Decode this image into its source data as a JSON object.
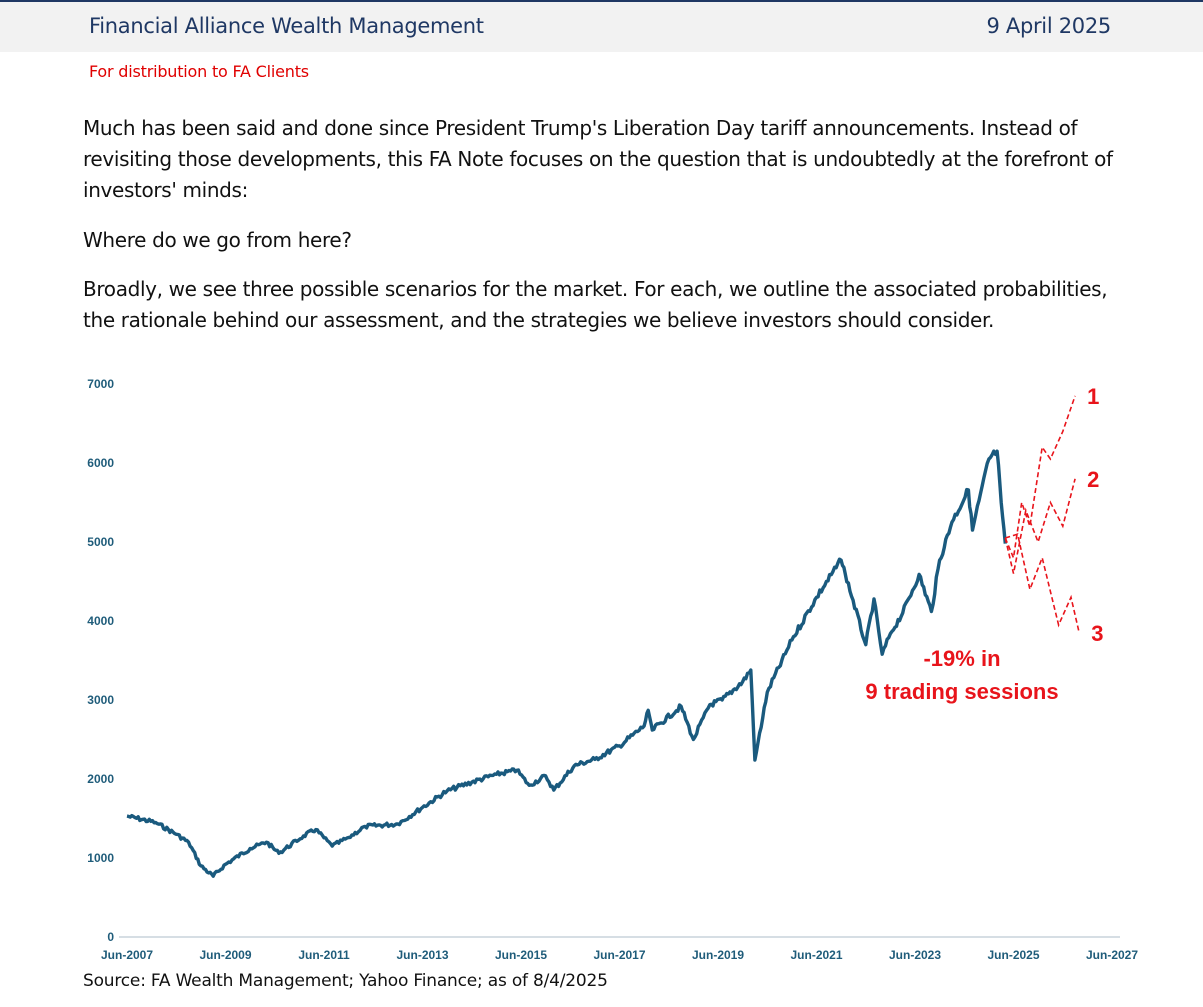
{
  "header": {
    "firm_name": "Financial Alliance Wealth Management",
    "date": "9 April 2025",
    "distribution": "For distribution to FA Clients"
  },
  "body": {
    "paragraph1": "Much has been said and done since President Trump's Liberation Day tariff announcements. Instead of revisiting those developments, this FA Note focuses on the question that is undoubtedly at the forefront of investors' minds:",
    "paragraph2": "Where do we go from here?",
    "paragraph3": "Broadly, we see three possible scenarios for the market. For each, we outline the associated probabilities, the rationale behind our assessment, and the strategies we believe investors should consider."
  },
  "source": "Source: FA Wealth Management; Yahoo Finance; as of 8/4/2025",
  "colors": {
    "navy": "#1f3864",
    "series": "#1a5a7e",
    "red": "#e8141b"
  },
  "chart_data": {
    "type": "line",
    "ylim": [
      0,
      7000
    ],
    "yticks": [
      "0",
      "1000",
      "2000",
      "3000",
      "4000",
      "5000",
      "6000",
      "7000"
    ],
    "xlim": [
      "Jun-2007",
      "Jun-2027"
    ],
    "xticks": [
      "Jun-2007",
      "Jun-2009",
      "Jun-2011",
      "Jun-2013",
      "Jun-2015",
      "Jun-2017",
      "Jun-2019",
      "Jun-2021",
      "Jun-2023",
      "Jun-2025",
      "Jun-2027"
    ],
    "series": [
      {
        "x": [
          "2007-06",
          "2008-01",
          "2008-06",
          "2008-09",
          "2008-12",
          "2009-03",
          "2009-06",
          "2009-12",
          "2010-04",
          "2010-07",
          "2011-01",
          "2011-04",
          "2011-08",
          "2011-12",
          "2012-04",
          "2012-12",
          "2013-06",
          "2013-12",
          "2014-06",
          "2014-12",
          "2015-05",
          "2015-08",
          "2015-12",
          "2016-02",
          "2016-07",
          "2016-12",
          "2017-06",
          "2017-12",
          "2018-01",
          "2018-02",
          "2018-09",
          "2018-12",
          "2019-04",
          "2019-07",
          "2019-12",
          "2020-02",
          "2020-03",
          "2020-06",
          "2020-12",
          "2021-06",
          "2021-12",
          "2022-01",
          "2022-06",
          "2022-08",
          "2022-10",
          "2022-12",
          "2023-03",
          "2023-07",
          "2023-10",
          "2023-12",
          "2024-03",
          "2024-07",
          "2024-08",
          "2024-12",
          "2025-02",
          "2025-03",
          "2025-04"
        ],
        "y": [
          1530,
          1450,
          1300,
          1200,
          900,
          770,
          920,
          1120,
          1200,
          1060,
          1280,
          1360,
          1150,
          1260,
          1400,
          1430,
          1640,
          1850,
          1960,
          2060,
          2110,
          1920,
          2040,
          1860,
          2170,
          2250,
          2420,
          2670,
          2870,
          2620,
          2920,
          2500,
          2940,
          3000,
          3230,
          3380,
          2240,
          3100,
          3760,
          4300,
          4770,
          4600,
          3700,
          4280,
          3580,
          3840,
          4100,
          4590,
          4120,
          4770,
          5250,
          5660,
          5150,
          6050,
          6150,
          5500,
          4980
        ]
      }
    ],
    "scenarios": [
      {
        "label": "1",
        "x": [
          "2025-04",
          "2025-06",
          "2025-08",
          "2025-10",
          "2026-01",
          "2026-03",
          "2026-06",
          "2026-09"
        ],
        "y": [
          5050,
          4800,
          5500,
          5200,
          6200,
          6050,
          6400,
          6850
        ]
      },
      {
        "label": "2",
        "x": [
          "2025-04",
          "2025-06",
          "2025-09",
          "2025-12",
          "2026-03",
          "2026-06",
          "2026-09"
        ],
        "y": [
          5050,
          4600,
          5400,
          5000,
          5500,
          5200,
          5800
        ]
      },
      {
        "label": "3",
        "x": [
          "2025-04",
          "2025-07",
          "2025-10",
          "2026-01",
          "2026-05",
          "2026-08",
          "2026-10"
        ],
        "y": [
          5050,
          5100,
          4400,
          4800,
          3950,
          4300,
          3850
        ]
      }
    ],
    "annotation": {
      "line1": "-19% in",
      "line2": "9 trading sessions"
    }
  }
}
